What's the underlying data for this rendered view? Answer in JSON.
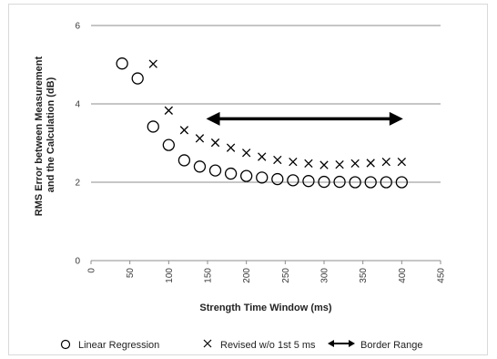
{
  "chart_data": {
    "type": "scatter",
    "title": "",
    "xlabel": "Strength Time Window (ms)",
    "ylabel_lines": [
      "RMS Error between Measurement",
      "and the Calculation (dB)"
    ],
    "xlim": [
      0,
      450
    ],
    "ylim": [
      0,
      6
    ],
    "xticks": [
      0,
      50,
      100,
      150,
      200,
      250,
      300,
      350,
      400,
      450
    ],
    "yticks": [
      0,
      2,
      4,
      6
    ],
    "grid": "horizontal",
    "legend_position": "bottom",
    "series": [
      {
        "name": "Linear Regression",
        "marker": "circle",
        "x": [
          40,
          60,
          80,
          100,
          120,
          140,
          160,
          180,
          200,
          220,
          240,
          260,
          280,
          300,
          320,
          340,
          360,
          380,
          400
        ],
        "y": [
          5.03,
          4.65,
          3.42,
          2.95,
          2.56,
          2.4,
          2.3,
          2.22,
          2.16,
          2.12,
          2.08,
          2.05,
          2.03,
          2.01,
          2.01,
          2.0,
          2.0,
          2.0,
          2.0
        ]
      },
      {
        "name": "Revised w/o 1st 5 ms",
        "marker": "x",
        "x": [
          80,
          100,
          120,
          140,
          160,
          180,
          200,
          220,
          240,
          260,
          280,
          300,
          320,
          340,
          360,
          380,
          400
        ],
        "y": [
          5.02,
          3.83,
          3.33,
          3.12,
          3.01,
          2.88,
          2.75,
          2.65,
          2.57,
          2.52,
          2.48,
          2.44,
          2.45,
          2.48,
          2.49,
          2.52,
          2.52
        ]
      }
    ],
    "annotation": {
      "name": "Border Range",
      "type": "double-arrow",
      "x": [
        160,
        390
      ],
      "y": 3.62
    },
    "colors": {
      "marker": "#000000",
      "grid": "#8c8c8c",
      "axis": "#8c8c8c"
    }
  }
}
